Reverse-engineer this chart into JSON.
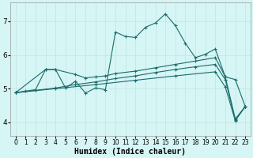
{
  "xlabel": "Humidex (Indice chaleur)",
  "bg_color": "#d6f5f5",
  "line_color": "#1a6b6b",
  "grid_color": "#c8e8e8",
  "xlim": [
    -0.5,
    23.5
  ],
  "ylim": [
    3.6,
    7.55
  ],
  "yticks": [
    4,
    5,
    6,
    7
  ],
  "xtick_labels": [
    "0",
    "1",
    "2",
    "3",
    "4",
    "5",
    "6",
    "7",
    "8",
    "9",
    "10",
    "11",
    "12",
    "13",
    "14",
    "15",
    "16",
    "17",
    "18",
    "19",
    "20",
    "21",
    "22",
    "23"
  ],
  "series1": [
    [
      0,
      4.88
    ],
    [
      1,
      4.93
    ],
    [
      2,
      4.97
    ],
    [
      3,
      5.57
    ],
    [
      4,
      5.57
    ],
    [
      5,
      5.02
    ],
    [
      6,
      5.22
    ],
    [
      7,
      4.87
    ],
    [
      8,
      5.02
    ],
    [
      9,
      4.97
    ],
    [
      10,
      6.68
    ],
    [
      11,
      6.55
    ],
    [
      12,
      6.52
    ],
    [
      13,
      6.82
    ],
    [
      14,
      6.95
    ],
    [
      15,
      7.22
    ],
    [
      16,
      6.87
    ],
    [
      17,
      6.35
    ],
    [
      18,
      5.92
    ],
    [
      19,
      6.02
    ],
    [
      20,
      6.18
    ],
    [
      21,
      5.35
    ],
    [
      22,
      5.27
    ],
    [
      23,
      4.47
    ]
  ],
  "series2": [
    [
      0,
      4.88
    ],
    [
      3,
      5.57
    ],
    [
      4,
      5.57
    ],
    [
      6,
      5.42
    ],
    [
      7,
      5.32
    ],
    [
      8,
      5.35
    ],
    [
      9,
      5.38
    ],
    [
      10,
      5.45
    ],
    [
      12,
      5.52
    ],
    [
      14,
      5.62
    ],
    [
      16,
      5.72
    ],
    [
      18,
      5.82
    ],
    [
      20,
      5.92
    ],
    [
      21,
      5.35
    ],
    [
      22,
      4.1
    ],
    [
      23,
      4.47
    ]
  ],
  "series3": [
    [
      0,
      4.88
    ],
    [
      2,
      4.95
    ],
    [
      4,
      5.02
    ],
    [
      6,
      5.12
    ],
    [
      8,
      5.2
    ],
    [
      10,
      5.3
    ],
    [
      12,
      5.38
    ],
    [
      14,
      5.48
    ],
    [
      16,
      5.57
    ],
    [
      18,
      5.65
    ],
    [
      20,
      5.72
    ],
    [
      21,
      5.27
    ],
    [
      22,
      4.07
    ],
    [
      23,
      4.47
    ]
  ],
  "series4": [
    [
      0,
      4.88
    ],
    [
      4,
      5.0
    ],
    [
      8,
      5.12
    ],
    [
      12,
      5.25
    ],
    [
      16,
      5.38
    ],
    [
      20,
      5.5
    ],
    [
      21,
      5.05
    ],
    [
      22,
      4.05
    ],
    [
      23,
      4.47
    ]
  ]
}
